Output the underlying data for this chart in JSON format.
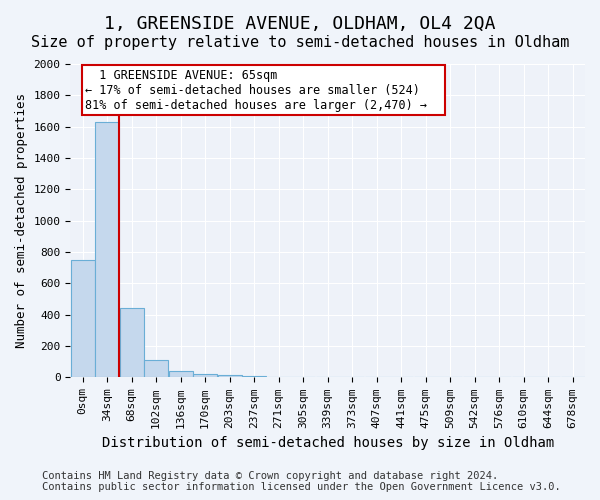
{
  "title": "1, GREENSIDE AVENUE, OLDHAM, OL4 2QA",
  "subtitle": "Size of property relative to semi-detached houses in Oldham",
  "xlabel": "Distribution of semi-detached houses by size in Oldham",
  "ylabel": "Number of semi-detached properties",
  "footer_line1": "Contains HM Land Registry data © Crown copyright and database right 2024.",
  "footer_line2": "Contains public sector information licensed under the Open Government Licence v3.0.",
  "bins": [
    "0sqm",
    "34sqm",
    "68sqm",
    "102sqm",
    "136sqm",
    "170sqm",
    "203sqm",
    "237sqm",
    "271sqm",
    "305sqm",
    "339sqm",
    "373sqm",
    "407sqm",
    "441sqm",
    "475sqm",
    "509sqm",
    "542sqm",
    "576sqm",
    "610sqm",
    "644sqm",
    "678sqm"
  ],
  "values": [
    750,
    1630,
    440,
    110,
    40,
    25,
    15,
    10,
    0,
    0,
    0,
    0,
    0,
    0,
    0,
    0,
    0,
    0,
    0,
    0,
    0
  ],
  "bar_color": "#c5d8ed",
  "bar_edge_color": "#6aaed6",
  "red_line_x": 1.47,
  "property_label": "1 GREENSIDE AVENUE: 65sqm",
  "smaller_label": "← 17% of semi-detached houses are smaller (524)",
  "larger_label": "81% of semi-detached houses are larger (2,470) →",
  "annotation_box_color": "#ffffff",
  "annotation_box_edge_color": "#cc0000",
  "ylim": [
    0,
    2000
  ],
  "yticks": [
    0,
    200,
    400,
    600,
    800,
    1000,
    1200,
    1400,
    1600,
    1800,
    2000
  ],
  "title_fontsize": 13,
  "subtitle_fontsize": 11,
  "xlabel_fontsize": 10,
  "ylabel_fontsize": 9,
  "tick_fontsize": 8,
  "annotation_fontsize": 8.5,
  "footer_fontsize": 7.5,
  "background_color": "#f0f4fa",
  "plot_background_color": "#eef2f9"
}
